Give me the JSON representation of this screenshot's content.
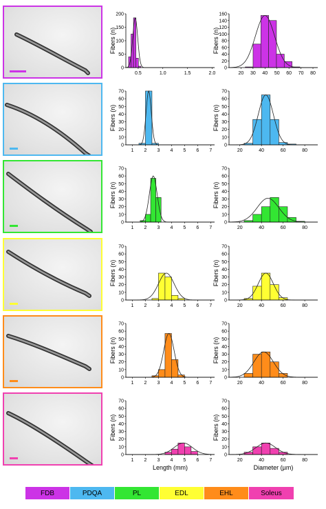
{
  "colors": {
    "FDB": "#cc33e6",
    "PDQA": "#4db8f0",
    "PL": "#33e633",
    "EDL": "#ffff33",
    "EHL": "#ff8c1a",
    "Soleus": "#f040b0"
  },
  "legend": [
    {
      "label": "FDB",
      "color": "#cc33e6"
    },
    {
      "label": "PDQA",
      "color": "#4db8f0"
    },
    {
      "label": "PL",
      "color": "#33e633"
    },
    {
      "label": "EDL",
      "color": "#ffff33"
    },
    {
      "label": "EHL",
      "color": "#ff8c1a"
    },
    {
      "label": "Soleus",
      "color": "#f040b0"
    }
  ],
  "chart_data": [
    {
      "type": "bar",
      "muscle": "FDB",
      "column": "length",
      "ylabel": "Fibers (n)",
      "xlabel": "",
      "xlim": [
        0.25,
        2.05
      ],
      "ylim": [
        0,
        200
      ],
      "xticks": [
        0.5,
        1.0,
        1.5,
        2.0
      ],
      "xtick_labels": [
        "0.5",
        "1.0",
        "1.5",
        "2.0"
      ],
      "yticks": [
        0,
        50,
        100,
        150,
        200
      ],
      "bin_width": 0.05,
      "x": [
        0.33,
        0.38,
        0.43,
        0.48,
        0.53
      ],
      "values": [
        40,
        125,
        185,
        35,
        5
      ],
      "fit": {
        "mean": 0.44,
        "sd": 0.05,
        "peak": 185
      }
    },
    {
      "type": "bar",
      "muscle": "FDB",
      "column": "diameter",
      "ylabel": "Fibers (n)",
      "xlabel": "",
      "xlim": [
        10,
        84
      ],
      "ylim": [
        0,
        160
      ],
      "xticks": [
        20,
        30,
        40,
        50,
        60,
        70,
        80
      ],
      "xtick_labels": [
        "20",
        "30",
        "40",
        "50",
        "60",
        "70",
        "80"
      ],
      "yticks": [
        0,
        20,
        40,
        60,
        80,
        100,
        120,
        140,
        160
      ],
      "bin_width": 6.5,
      "x": [
        26.8,
        33.3,
        39.8,
        46.3,
        52.8,
        59.3,
        65.8
      ],
      "values": [
        2,
        70,
        155,
        140,
        40,
        18,
        2
      ],
      "fit": {
        "mean": 40,
        "sd": 8,
        "peak": 155
      }
    },
    {
      "type": "bar",
      "muscle": "PDQA",
      "column": "length",
      "ylabel": "Fibers (n)",
      "xlabel": "",
      "xlim": [
        0.5,
        7.3
      ],
      "ylim": [
        0,
        70
      ],
      "xticks": [
        1,
        2,
        3,
        4,
        5,
        6,
        7
      ],
      "xtick_labels": [
        "1",
        "2",
        "3",
        "4",
        "5",
        "6",
        "7"
      ],
      "yticks": [
        0,
        10,
        20,
        30,
        40,
        50,
        60,
        70
      ],
      "bin_width": 0.5,
      "x": [
        1.75,
        2.25,
        2.75
      ],
      "values": [
        2,
        70,
        2
      ],
      "fit": {
        "mean": 2.25,
        "sd": 0.2,
        "peak": 70
      }
    },
    {
      "type": "bar",
      "muscle": "PDQA",
      "column": "diameter",
      "ylabel": "Fibers (n)",
      "xlabel": "",
      "xlim": [
        10,
        92
      ],
      "ylim": [
        0,
        70
      ],
      "xticks": [
        20,
        40,
        60,
        80
      ],
      "xtick_labels": [
        "20",
        "40",
        "60",
        "80"
      ],
      "yticks": [
        0,
        10,
        20,
        30,
        40,
        50,
        60,
        70
      ],
      "bin_width": 8,
      "x": [
        28,
        36,
        44,
        52,
        60,
        68
      ],
      "values": [
        2,
        33,
        65,
        33,
        3,
        1
      ],
      "fit": {
        "mean": 44,
        "sd": 7,
        "peak": 65
      }
    },
    {
      "type": "bar",
      "muscle": "PL",
      "column": "length",
      "ylabel": "Fibers (n)",
      "xlabel": "",
      "xlim": [
        0.5,
        7.3
      ],
      "ylim": [
        0,
        70
      ],
      "xticks": [
        1,
        2,
        3,
        4,
        5,
        6,
        7
      ],
      "xtick_labels": [
        "1",
        "2",
        "3",
        "4",
        "5",
        "6",
        "7"
      ],
      "yticks": [
        0,
        10,
        20,
        30,
        40,
        50,
        60,
        70
      ],
      "bin_width": 0.4,
      "x": [
        1.8,
        2.2,
        2.6,
        3.0
      ],
      "values": [
        2,
        10,
        57,
        32
      ],
      "fit": {
        "mean": 2.6,
        "sd": 0.3,
        "peak": 60
      }
    },
    {
      "type": "bar",
      "muscle": "PL",
      "column": "diameter",
      "ylabel": "Fibers (n)",
      "xlabel": "",
      "xlim": [
        10,
        92
      ],
      "ylim": [
        0,
        70
      ],
      "xticks": [
        20,
        40,
        60,
        80
      ],
      "xtick_labels": [
        "20",
        "40",
        "60",
        "80"
      ],
      "yticks": [
        0,
        10,
        20,
        30,
        40,
        50,
        60,
        70
      ],
      "bin_width": 8,
      "x": [
        28,
        36,
        44,
        52,
        60,
        68,
        76
      ],
      "values": [
        2,
        10,
        20,
        32,
        20,
        6,
        1
      ],
      "fit": {
        "mean": 46,
        "sd": 10,
        "peak": 31
      }
    },
    {
      "type": "bar",
      "muscle": "EDL",
      "column": "length",
      "ylabel": "Fibers (n)",
      "xlabel": "",
      "xlim": [
        0.5,
        7.3
      ],
      "ylim": [
        0,
        70
      ],
      "xticks": [
        1,
        2,
        3,
        4,
        5,
        6,
        7
      ],
      "xtick_labels": [
        "1",
        "2",
        "3",
        "4",
        "5",
        "6",
        "7"
      ],
      "yticks": [
        0,
        10,
        20,
        30,
        40,
        50,
        60,
        70
      ],
      "bin_width": 0.5,
      "x": [
        2.75,
        3.25,
        3.75,
        4.25,
        4.75
      ],
      "values": [
        2,
        35,
        30,
        6,
        2
      ],
      "fit": {
        "mean": 3.6,
        "sd": 0.6,
        "peak": 35
      }
    },
    {
      "type": "bar",
      "muscle": "EDL",
      "column": "diameter",
      "ylabel": "Fibers (n)",
      "xlabel": "",
      "xlim": [
        10,
        92
      ],
      "ylim": [
        0,
        70
      ],
      "xticks": [
        20,
        40,
        60,
        80
      ],
      "xtick_labels": [
        "20",
        "40",
        "60",
        "80"
      ],
      "yticks": [
        0,
        10,
        20,
        30,
        40,
        50,
        60,
        70
      ],
      "bin_width": 8,
      "x": [
        28,
        36,
        44,
        52,
        60
      ],
      "values": [
        2,
        18,
        35,
        20,
        3
      ],
      "fit": {
        "mean": 44,
        "sd": 7,
        "peak": 35
      }
    },
    {
      "type": "bar",
      "muscle": "EHL",
      "column": "length",
      "ylabel": "Fibers (n)",
      "xlabel": "",
      "xlim": [
        0.5,
        7.3
      ],
      "ylim": [
        0,
        70
      ],
      "xticks": [
        1,
        2,
        3,
        4,
        5,
        6,
        7
      ],
      "xtick_labels": [
        "1",
        "2",
        "3",
        "4",
        "5",
        "6",
        "7"
      ],
      "yticks": [
        0,
        10,
        20,
        30,
        40,
        50,
        60,
        70
      ],
      "bin_width": 0.5,
      "x": [
        2.75,
        3.25,
        3.75,
        4.25,
        4.75
      ],
      "values": [
        2,
        10,
        57,
        23,
        3
      ],
      "fit": {
        "mean": 3.8,
        "sd": 0.4,
        "peak": 57
      }
    },
    {
      "type": "bar",
      "muscle": "EHL",
      "column": "diameter",
      "ylabel": "Fibers (n)",
      "xlabel": "",
      "xlim": [
        10,
        92
      ],
      "ylim": [
        0,
        70
      ],
      "xticks": [
        20,
        40,
        60,
        80
      ],
      "xtick_labels": [
        "20",
        "40",
        "60",
        "80"
      ],
      "yticks": [
        0,
        10,
        20,
        30,
        40,
        50,
        60,
        70
      ],
      "bin_width": 8,
      "x": [
        28,
        36,
        44,
        52,
        60
      ],
      "values": [
        5,
        30,
        33,
        20,
        5
      ],
      "fit": {
        "mean": 42,
        "sd": 9,
        "peak": 33
      }
    },
    {
      "type": "bar",
      "muscle": "Soleus",
      "column": "length",
      "ylabel": "Fibers (n)",
      "xlabel": "Length (mm)",
      "xlim": [
        0.5,
        7.3
      ],
      "ylim": [
        0,
        70
      ],
      "xticks": [
        1,
        2,
        3,
        4,
        5,
        6,
        7
      ],
      "xtick_labels": [
        "1",
        "2",
        "3",
        "4",
        "5",
        "6",
        "7"
      ],
      "yticks": [
        0,
        10,
        20,
        30,
        40,
        50,
        60,
        70
      ],
      "bin_width": 0.5,
      "x": [
        3.75,
        4.25,
        4.75,
        5.25,
        5.75
      ],
      "values": [
        3,
        7,
        15,
        10,
        4
      ],
      "fit": {
        "mean": 4.9,
        "sd": 0.7,
        "peak": 15
      }
    },
    {
      "type": "bar",
      "muscle": "Soleus",
      "column": "diameter",
      "ylabel": "Fibers (n)",
      "xlabel": "Diameter (µm)",
      "xlim": [
        10,
        92
      ],
      "ylim": [
        0,
        70
      ],
      "xticks": [
        20,
        40,
        60,
        80
      ],
      "xtick_labels": [
        "20",
        "40",
        "60",
        "80"
      ],
      "yticks": [
        0,
        10,
        20,
        30,
        40,
        50,
        60,
        70
      ],
      "bin_width": 8,
      "x": [
        28,
        36,
        44,
        52,
        60
      ],
      "values": [
        3,
        10,
        15,
        8,
        3
      ],
      "fit": {
        "mean": 44,
        "sd": 9,
        "peak": 15
      }
    }
  ]
}
